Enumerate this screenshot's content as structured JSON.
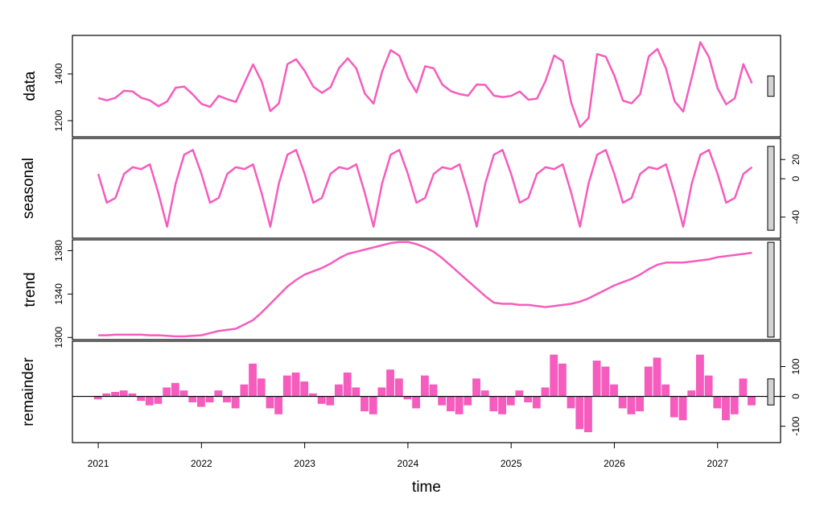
{
  "chart_data": {
    "type": "stl",
    "xlabel": "time",
    "color": "#f55cbd",
    "xlim": [
      2020.75,
      2027.61
    ],
    "xticks": [
      2021,
      2022,
      2023,
      2024,
      2025,
      2026,
      2027
    ],
    "x": [
      2021,
      2021.083,
      2021.167,
      2021.25,
      2021.333,
      2021.417,
      2021.5,
      2021.583,
      2021.667,
      2021.75,
      2021.833,
      2021.917,
      2022,
      2022.083,
      2022.167,
      2022.25,
      2022.333,
      2022.417,
      2022.5,
      2022.583,
      2022.667,
      2022.75,
      2022.833,
      2022.917,
      2023,
      2023.083,
      2023.167,
      2023.25,
      2023.333,
      2023.417,
      2023.5,
      2023.583,
      2023.667,
      2023.75,
      2023.833,
      2023.917,
      2024,
      2024.083,
      2024.167,
      2024.25,
      2024.333,
      2024.417,
      2024.5,
      2024.583,
      2024.667,
      2024.75,
      2024.833,
      2024.917,
      2025,
      2025.083,
      2025.167,
      2025.25,
      2025.333,
      2025.417,
      2025.5,
      2025.583,
      2025.667,
      2025.75,
      2025.833,
      2025.917,
      2026,
      2026.083,
      2026.167,
      2026.25,
      2026.333,
      2026.417,
      2026.5,
      2026.583,
      2026.667,
      2026.75,
      2026.833,
      2026.917,
      2027,
      2027.083,
      2027.167,
      2027.25,
      2027.333
    ],
    "panels": [
      {
        "type": "line",
        "ylabel": "data",
        "ylim": [
          1131,
          1565
        ],
        "yticks": [
          1200,
          1400
        ],
        "side": "left",
        "values": [
          1297,
          1287,
          1298,
          1328,
          1325,
          1298,
          1287,
          1262,
          1282,
          1341,
          1346,
          1312,
          1272,
          1259,
          1306,
          1292,
          1280,
          1362,
          1441,
          1368,
          1241,
          1274,
          1442,
          1463,
          1413,
          1346,
          1319,
          1343,
          1425,
          1467,
          1424,
          1316,
          1273,
          1410,
          1502,
          1478,
          1383,
          1321,
          1433,
          1424,
          1355,
          1326,
          1314,
          1307,
          1355,
          1353,
          1307,
          1301,
          1306,
          1325,
          1290,
          1294,
          1370,
          1479,
          1455,
          1276,
          1173,
          1211,
          1485,
          1474,
          1393,
          1286,
          1274,
          1313,
          1475,
          1507,
          1424,
          1284,
          1239,
          1385,
          1536,
          1472,
          1339,
          1270,
          1296,
          1442,
          1360
        ]
      },
      {
        "type": "line",
        "ylabel": "seasonal",
        "ylim": [
          -62,
          42
        ],
        "yticks": [
          -40,
          0,
          20
        ],
        "side": "right",
        "values": [
          5,
          -25,
          -20,
          5,
          12,
          10,
          15,
          -15,
          -50,
          -5,
          25,
          30,
          5,
          -25,
          -20,
          5,
          12,
          10,
          15,
          -15,
          -50,
          -5,
          25,
          30,
          5,
          -25,
          -20,
          5,
          12,
          10,
          15,
          -15,
          -50,
          -5,
          25,
          30,
          5,
          -25,
          -20,
          5,
          12,
          10,
          15,
          -15,
          -50,
          -5,
          25,
          30,
          5,
          -25,
          -20,
          5,
          12,
          10,
          15,
          -15,
          -50,
          -5,
          25,
          30,
          5,
          -25,
          -20,
          5,
          12,
          10,
          15,
          -15,
          -50,
          -5,
          25,
          30,
          5,
          -25,
          -20,
          5,
          12
        ]
      },
      {
        "type": "line",
        "ylabel": "trend",
        "ylim": [
          1298,
          1390
        ],
        "yticks": [
          1300,
          1340,
          1380
        ],
        "side": "left",
        "values": [
          1302,
          1302,
          1302.5,
          1302.5,
          1302.5,
          1302.5,
          1302,
          1302,
          1301.5,
          1301,
          1301,
          1301.5,
          1302,
          1304,
          1306,
          1307,
          1308,
          1312,
          1316,
          1323,
          1331,
          1339,
          1347,
          1353,
          1358,
          1361,
          1364,
          1368,
          1373,
          1377,
          1379,
          1381,
          1383,
          1385,
          1387,
          1388,
          1388,
          1386,
          1383,
          1379,
          1373,
          1366,
          1359,
          1352,
          1345,
          1338,
          1332,
          1331,
          1331,
          1330,
          1330,
          1329,
          1328,
          1329,
          1330,
          1331,
          1333,
          1336,
          1340,
          1344,
          1348,
          1351,
          1354,
          1358,
          1363,
          1367,
          1369,
          1369,
          1369,
          1370,
          1371,
          1372,
          1374,
          1375,
          1376,
          1377,
          1378
        ]
      },
      {
        "type": "bar",
        "ylabel": "remainder",
        "ylim": [
          -155,
          185
        ],
        "yticks": [
          -100,
          0,
          100
        ],
        "side": "right",
        "values": [
          -10,
          10,
          15,
          20,
          10,
          -15,
          -30,
          -25,
          30,
          45,
          20,
          -20,
          -35,
          -20,
          20,
          -20,
          -40,
          40,
          110,
          60,
          -40,
          -60,
          70,
          80,
          50,
          10,
          -25,
          -30,
          40,
          80,
          30,
          -50,
          -60,
          30,
          90,
          60,
          -10,
          -40,
          70,
          40,
          -30,
          -50,
          -60,
          -30,
          60,
          20,
          -50,
          -60,
          -30,
          20,
          -20,
          -40,
          30,
          140,
          110,
          -40,
          -110,
          -120,
          120,
          100,
          40,
          -40,
          -60,
          -50,
          100,
          130,
          40,
          -70,
          -80,
          20,
          140,
          70,
          -40,
          -80,
          -60,
          60,
          -30
        ]
      }
    ]
  }
}
